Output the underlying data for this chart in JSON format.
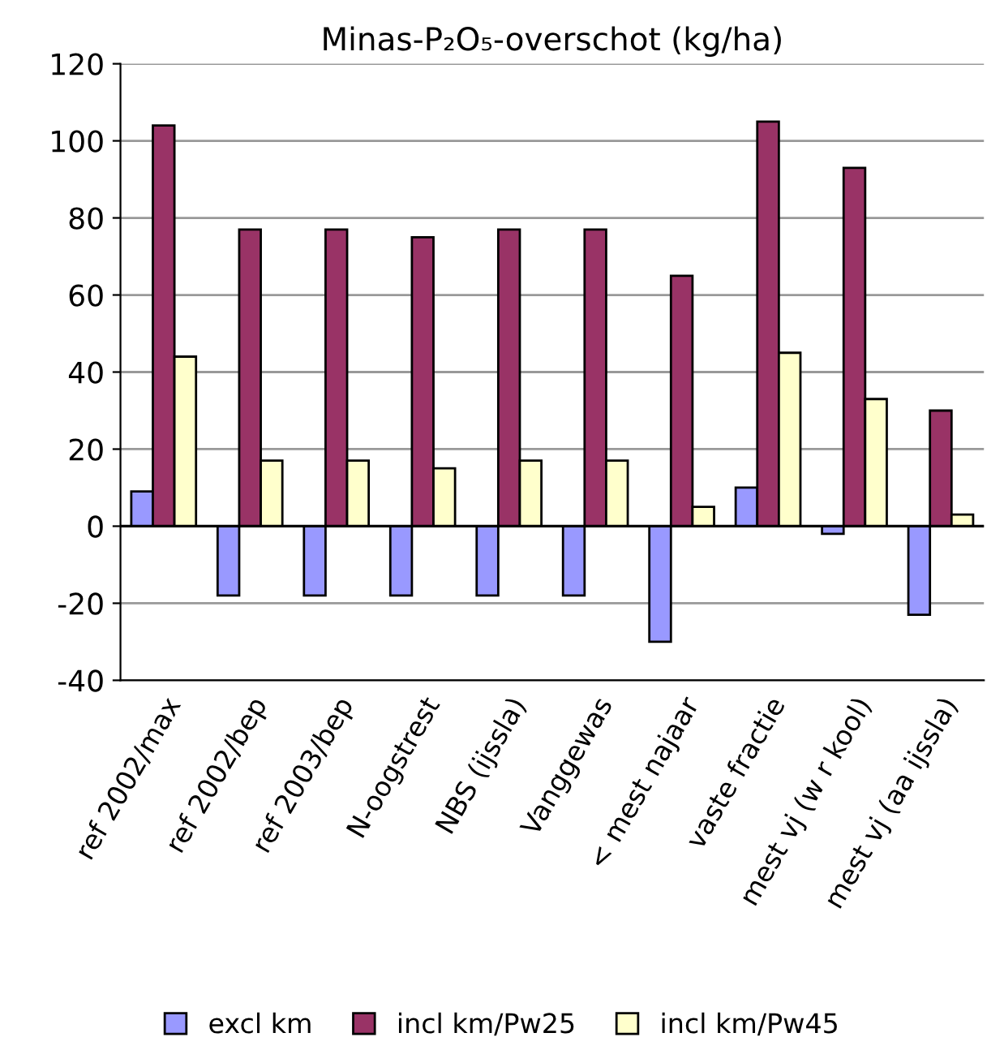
{
  "chart_data": {
    "type": "bar",
    "title": "Minas-P₂O₅-overschot (kg/ha)",
    "categories": [
      "ref 2002/max",
      "ref 2002/bep",
      "ref 2003/bep",
      "N-oogstrest",
      "NBS (ijssla)",
      "Vanggewas",
      "< mest najaar",
      "vaste fractie",
      "mest vj (w r kool)",
      "mest vj (aa ijssla)"
    ],
    "series": [
      {
        "name": "excl km",
        "color": "#9999ff",
        "values": [
          9,
          -18,
          -18,
          -18,
          -18,
          -18,
          -30,
          10,
          -2,
          -23
        ]
      },
      {
        "name": "incl km/Pw25",
        "color": "#993366",
        "values": [
          104,
          77,
          77,
          75,
          77,
          77,
          65,
          105,
          93,
          30
        ]
      },
      {
        "name": "incl km/Pw45",
        "color": "#ffffcc",
        "values": [
          44,
          17,
          17,
          15,
          17,
          17,
          5,
          45,
          33,
          3
        ]
      }
    ],
    "ylim": [
      -40,
      120
    ],
    "yticks": [
      -40,
      -20,
      0,
      20,
      40,
      60,
      80,
      100,
      120
    ],
    "grid": "y",
    "legend": "bottom"
  }
}
